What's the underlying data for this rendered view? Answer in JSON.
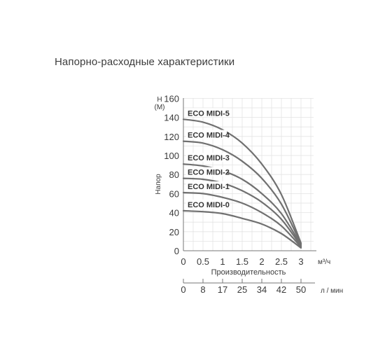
{
  "page_title": "Напорно-расходные характеристики",
  "chart_data": {
    "type": "line",
    "y_label_top": "H",
    "y_unit": "(М)",
    "y_label_side": "Напор",
    "xlabel": "Производительность",
    "x_unit": "м³/ч",
    "x2_unit": "л / мин",
    "x_ticks": [
      "0",
      "0.5",
      "1",
      "1.5",
      "2",
      "2.5",
      "3"
    ],
    "x_tick_values": [
      0,
      0.5,
      1,
      1.5,
      2,
      2.5,
      3
    ],
    "x2_ticks": [
      "0",
      "8",
      "17",
      "25",
      "34",
      "42",
      "50"
    ],
    "y_ticks": [
      "0",
      "20",
      "40",
      "60",
      "80",
      "100",
      "120",
      "140",
      "160"
    ],
    "y_tick_values": [
      0,
      20,
      40,
      60,
      80,
      100,
      120,
      140,
      160
    ],
    "xlim": [
      0,
      3.3
    ],
    "ylim": [
      0,
      160
    ],
    "grid": true,
    "line_color": "#707070",
    "series": [
      {
        "name": "ECO MIDI-5",
        "x": [
          0,
          0.5,
          1,
          1.5,
          2,
          2.5,
          3
        ],
        "y": [
          138,
          135,
          127,
          113,
          91,
          59,
          8
        ]
      },
      {
        "name": "ECO MIDI-4",
        "x": [
          0,
          0.5,
          1,
          1.5,
          2,
          2.5,
          3
        ],
        "y": [
          115,
          113,
          106,
          94,
          76,
          49,
          7
        ]
      },
      {
        "name": "ECO MIDI-3",
        "x": [
          0,
          0.5,
          1,
          1.5,
          2,
          2.5,
          3
        ],
        "y": [
          91,
          89,
          84,
          75,
          60,
          39,
          6
        ]
      },
      {
        "name": "ECO MIDI-2",
        "x": [
          0,
          0.5,
          1,
          1.5,
          2,
          2.5,
          3
        ],
        "y": [
          76,
          75,
          71,
          63,
          51,
          33,
          5
        ]
      },
      {
        "name": "ECO MIDI-1",
        "x": [
          0,
          0.5,
          1,
          1.5,
          2,
          2.5,
          3
        ],
        "y": [
          61,
          60,
          56,
          50,
          40,
          26,
          4
        ]
      },
      {
        "name": "ECO MIDI-0",
        "x": [
          0,
          0.5,
          1,
          1.5,
          2,
          2.5,
          3
        ],
        "y": [
          42,
          41,
          39,
          34,
          28,
          18,
          3
        ]
      }
    ]
  }
}
